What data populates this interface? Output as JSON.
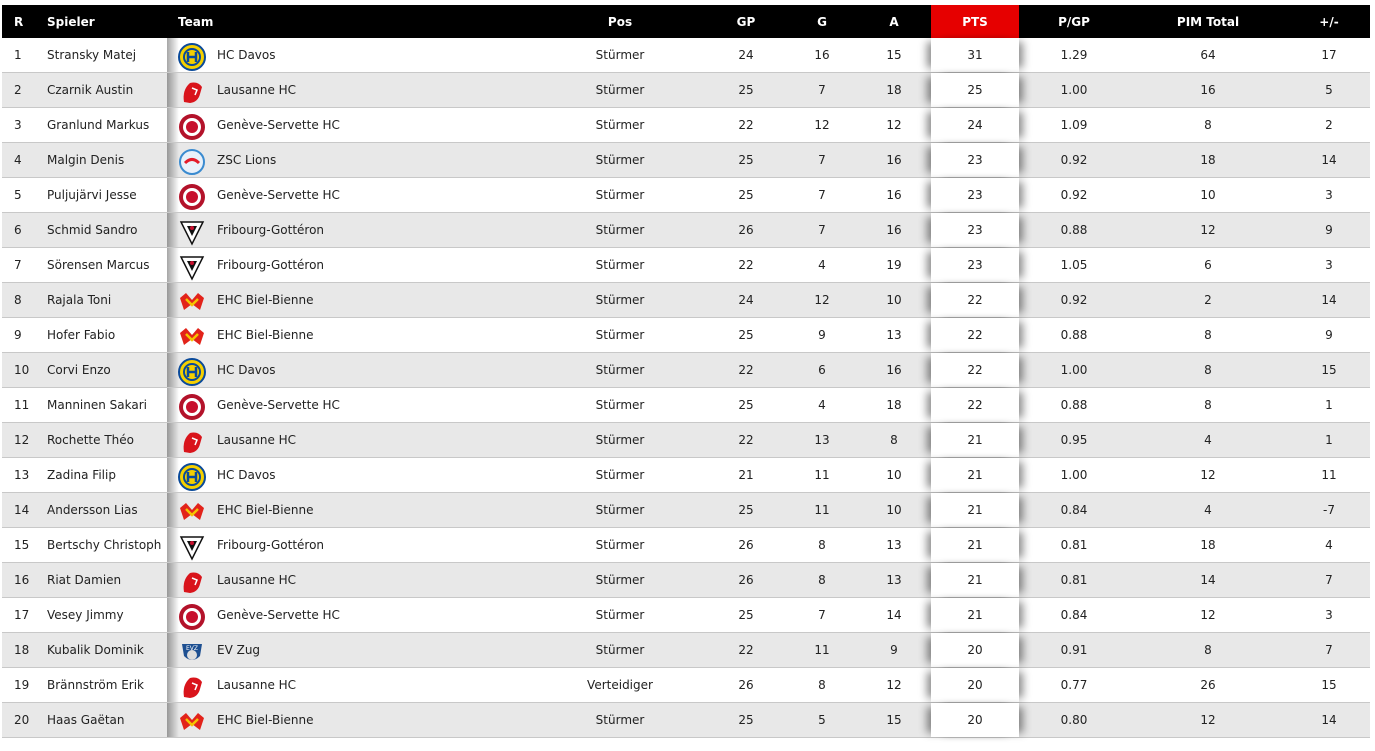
{
  "colors": {
    "header_bg": "#000000",
    "pts_header": "#e60000",
    "alt_row": "#e8e8e8"
  },
  "headers": {
    "r": "R",
    "spieler": "Spieler",
    "team": "Team",
    "pos": "Pos",
    "gp": "GP",
    "g": "G",
    "a": "A",
    "pts": "PTS",
    "ppg": "P/GP",
    "pim": "PIM Total",
    "pm": "+/-"
  },
  "rows": [
    {
      "r": "1",
      "spieler": "Stransky Matej",
      "team": "HC Davos",
      "logo": "davos",
      "pos": "Stürmer",
      "gp": "24",
      "g": "16",
      "a": "15",
      "pts": "31",
      "ppg": "1.29",
      "pim": "64",
      "pm": "17"
    },
    {
      "r": "2",
      "spieler": "Czarnik Austin",
      "team": "Lausanne HC",
      "logo": "lausanne",
      "pos": "Stürmer",
      "gp": "25",
      "g": "7",
      "a": "18",
      "pts": "25",
      "ppg": "1.00",
      "pim": "16",
      "pm": "5"
    },
    {
      "r": "3",
      "spieler": "Granlund Markus",
      "team": "Genève-Servette HC",
      "logo": "geneve",
      "pos": "Stürmer",
      "gp": "22",
      "g": "12",
      "a": "12",
      "pts": "24",
      "ppg": "1.09",
      "pim": "8",
      "pm": "2"
    },
    {
      "r": "4",
      "spieler": "Malgin Denis",
      "team": "ZSC Lions",
      "logo": "zsc",
      "pos": "Stürmer",
      "gp": "25",
      "g": "7",
      "a": "16",
      "pts": "23",
      "ppg": "0.92",
      "pim": "18",
      "pm": "14"
    },
    {
      "r": "5",
      "spieler": "Puljujärvi Jesse",
      "team": "Genève-Servette HC",
      "logo": "geneve",
      "pos": "Stürmer",
      "gp": "25",
      "g": "7",
      "a": "16",
      "pts": "23",
      "ppg": "0.92",
      "pim": "10",
      "pm": "3"
    },
    {
      "r": "6",
      "spieler": "Schmid Sandro",
      "team": "Fribourg-Gottéron",
      "logo": "fribourg",
      "pos": "Stürmer",
      "gp": "26",
      "g": "7",
      "a": "16",
      "pts": "23",
      "ppg": "0.88",
      "pim": "12",
      "pm": "9"
    },
    {
      "r": "7",
      "spieler": "Sörensen Marcus",
      "team": "Fribourg-Gottéron",
      "logo": "fribourg",
      "pos": "Stürmer",
      "gp": "22",
      "g": "4",
      "a": "19",
      "pts": "23",
      "ppg": "1.05",
      "pim": "6",
      "pm": "3"
    },
    {
      "r": "8",
      "spieler": "Rajala Toni",
      "team": "EHC Biel-Bienne",
      "logo": "biel",
      "pos": "Stürmer",
      "gp": "24",
      "g": "12",
      "a": "10",
      "pts": "22",
      "ppg": "0.92",
      "pim": "2",
      "pm": "14"
    },
    {
      "r": "9",
      "spieler": "Hofer Fabio",
      "team": "EHC Biel-Bienne",
      "logo": "biel",
      "pos": "Stürmer",
      "gp": "25",
      "g": "9",
      "a": "13",
      "pts": "22",
      "ppg": "0.88",
      "pim": "8",
      "pm": "9"
    },
    {
      "r": "10",
      "spieler": "Corvi Enzo",
      "team": "HC Davos",
      "logo": "davos",
      "pos": "Stürmer",
      "gp": "22",
      "g": "6",
      "a": "16",
      "pts": "22",
      "ppg": "1.00",
      "pim": "8",
      "pm": "15"
    },
    {
      "r": "11",
      "spieler": "Manninen Sakari",
      "team": "Genève-Servette HC",
      "logo": "geneve",
      "pos": "Stürmer",
      "gp": "25",
      "g": "4",
      "a": "18",
      "pts": "22",
      "ppg": "0.88",
      "pim": "8",
      "pm": "1"
    },
    {
      "r": "12",
      "spieler": "Rochette Théo",
      "team": "Lausanne HC",
      "logo": "lausanne",
      "pos": "Stürmer",
      "gp": "22",
      "g": "13",
      "a": "8",
      "pts": "21",
      "ppg": "0.95",
      "pim": "4",
      "pm": "1"
    },
    {
      "r": "13",
      "spieler": "Zadina Filip",
      "team": "HC Davos",
      "logo": "davos",
      "pos": "Stürmer",
      "gp": "21",
      "g": "11",
      "a": "10",
      "pts": "21",
      "ppg": "1.00",
      "pim": "12",
      "pm": "11"
    },
    {
      "r": "14",
      "spieler": "Andersson Lias",
      "team": "EHC Biel-Bienne",
      "logo": "biel",
      "pos": "Stürmer",
      "gp": "25",
      "g": "11",
      "a": "10",
      "pts": "21",
      "ppg": "0.84",
      "pim": "4",
      "pm": "-7"
    },
    {
      "r": "15",
      "spieler": "Bertschy Christoph",
      "team": "Fribourg-Gottéron",
      "logo": "fribourg",
      "pos": "Stürmer",
      "gp": "26",
      "g": "8",
      "a": "13",
      "pts": "21",
      "ppg": "0.81",
      "pim": "18",
      "pm": "4"
    },
    {
      "r": "16",
      "spieler": "Riat Damien",
      "team": "Lausanne HC",
      "logo": "lausanne",
      "pos": "Stürmer",
      "gp": "26",
      "g": "8",
      "a": "13",
      "pts": "21",
      "ppg": "0.81",
      "pim": "14",
      "pm": "7"
    },
    {
      "r": "17",
      "spieler": "Vesey Jimmy",
      "team": "Genève-Servette HC",
      "logo": "geneve",
      "pos": "Stürmer",
      "gp": "25",
      "g": "7",
      "a": "14",
      "pts": "21",
      "ppg": "0.84",
      "pim": "12",
      "pm": "3"
    },
    {
      "r": "18",
      "spieler": "Kubalik Dominik",
      "team": "EV Zug",
      "logo": "zug",
      "pos": "Stürmer",
      "gp": "22",
      "g": "11",
      "a": "9",
      "pts": "20",
      "ppg": "0.91",
      "pim": "8",
      "pm": "7"
    },
    {
      "r": "19",
      "spieler": "Brännström Erik",
      "team": "Lausanne HC",
      "logo": "lausanne",
      "pos": "Verteidiger",
      "gp": "26",
      "g": "8",
      "a": "12",
      "pts": "20",
      "ppg": "0.77",
      "pim": "26",
      "pm": "15"
    },
    {
      "r": "20",
      "spieler": "Haas Gaëtan",
      "team": "EHC Biel-Bienne",
      "logo": "biel",
      "pos": "Stürmer",
      "gp": "25",
      "g": "5",
      "a": "15",
      "pts": "20",
      "ppg": "0.80",
      "pim": "12",
      "pm": "14"
    }
  ]
}
